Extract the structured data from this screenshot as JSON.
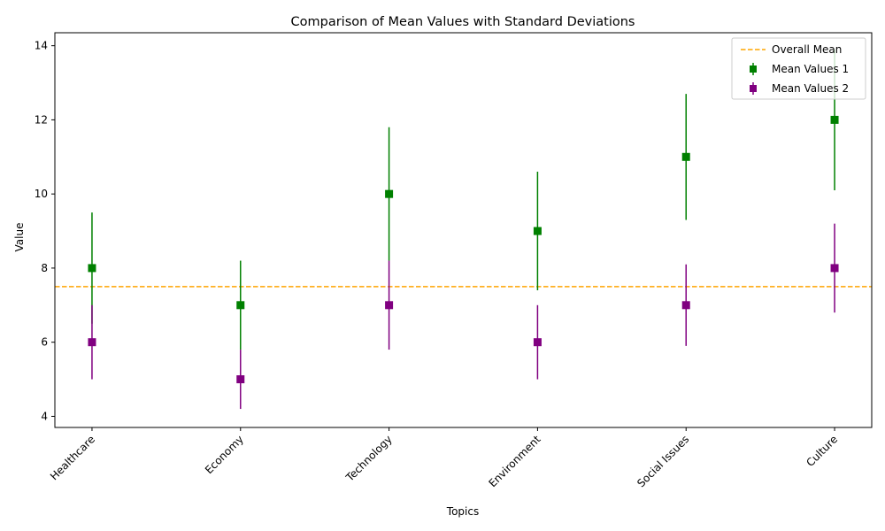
{
  "chart_data": {
    "type": "errorbar",
    "title": "Comparison of Mean Values with Standard Deviations",
    "xlabel": "Topics",
    "ylabel": "Value",
    "categories": [
      "Healthcare",
      "Economy",
      "Technology",
      "Environment",
      "Social Issues",
      "Culture"
    ],
    "ylim": [
      3.7,
      14.35
    ],
    "yticks": [
      4,
      6,
      8,
      10,
      12,
      14
    ],
    "series": [
      {
        "name": "Mean Values 1",
        "color": "#008000",
        "marker": "square",
        "values": [
          8,
          7,
          10,
          9,
          11,
          12
        ],
        "errors": [
          1.5,
          1.2,
          1.8,
          1.6,
          1.7,
          1.9
        ]
      },
      {
        "name": "Mean Values 2",
        "color": "#800080",
        "marker": "square",
        "values": [
          6,
          5,
          7,
          6,
          7,
          8
        ],
        "errors": [
          1.0,
          0.8,
          1.2,
          1.0,
          1.1,
          1.2
        ]
      }
    ],
    "reference_line": {
      "name": "Overall Mean",
      "value": 7.5,
      "color": "#FFA500",
      "style": "dashed"
    },
    "legend_position": "top-right",
    "grid": false
  }
}
